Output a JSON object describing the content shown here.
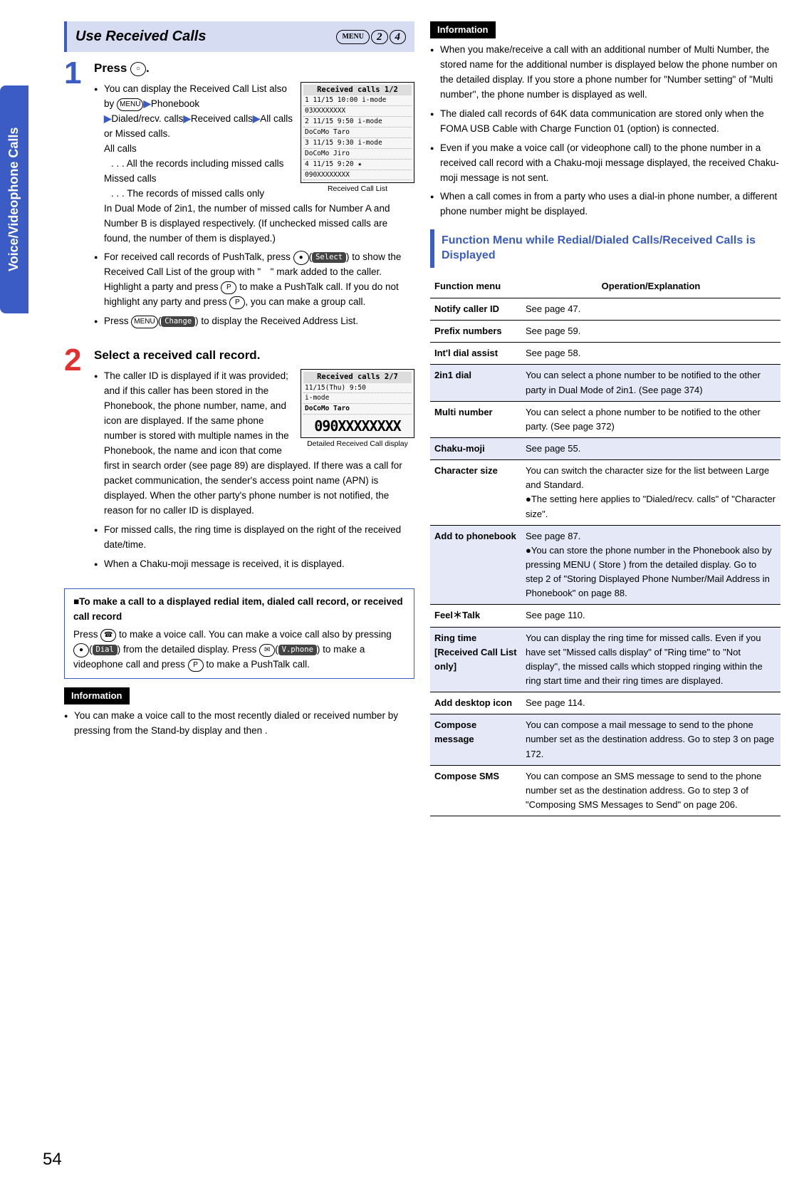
{
  "page_number": "54",
  "side_tab": "Voice/Videophone Calls",
  "title": "Use Received Calls",
  "menu_chips": [
    "MENU",
    "2",
    "4"
  ],
  "step1": {
    "title_prefix": "Press ",
    "title_key": "○",
    "title_suffix": ".",
    "screen_caption": "Received Call List",
    "screen_header": "Received calls  1/2",
    "screen_rows": [
      "1 11/15 10:00  i-mode",
      "  03XXXXXXXX",
      "2 11/15  9:50  i-mode",
      "  DoCoMo Taro",
      "3 11/15  9:30  i-mode",
      "  DoCoMo Jiro",
      "4 11/15  9:20  ★",
      "  090XXXXXXXX"
    ],
    "intro1_a": "You can display the Received Call List also by ",
    "intro1_b": "Phonebook",
    "intro1_c": "Dialed/recv. calls",
    "intro1_d": "Received calls",
    "intro1_e": "All calls or Missed calls.",
    "allcalls_label": "All calls",
    "allcalls_desc": ". . . All the records including missed calls",
    "missed_label": "Missed calls",
    "missed_desc": ". . . The records of missed calls only",
    "dual": "In Dual Mode of 2in1, the number of missed calls for Number A and Number B is displayed respectively. (If unchecked missed calls are found, the number of them is displayed.)",
    "b2_a": "For received call records of PushTalk, press ",
    "b2_b": " to show the Received Call List of the group with \"　\" mark added to the caller. Highlight a party and press ",
    "b2_c": " to make a PushTalk call. If you do not highlight any party and press ",
    "b2_d": ", you can make a group call.",
    "b3_a": "Press ",
    "b3_b": " to display the Received Address List."
  },
  "step2": {
    "title": "Select a received call record.",
    "screen_caption": "Detailed Received Call display",
    "screen_header": "Received calls  2/7",
    "screen_line1": "11/15(Thu) 9:50",
    "screen_line2": "i-mode",
    "screen_name": "DoCoMo Taro",
    "screen_big": "090XXXXXXXX",
    "b1": "The caller ID is displayed if it was provided; and if this caller has been stored in the Phonebook, the phone number, name, and icon are displayed. If the same phone number is stored with multiple names in the Phonebook, the name and icon that come first in search order (see page 89) are displayed. If there was a call for packet communication, the sender's access point name (APN) is displayed. When the other party's phone number is not notified, the reason for no caller ID is displayed.",
    "b2": "For missed calls, the ring time is displayed on the right of the received date/time.",
    "b3": "When a Chaku-moji message is received, it is displayed."
  },
  "callout": {
    "title": "■To make a call to a displayed redial item, dialed call record, or received call record",
    "l1a": "Press ",
    "l1b": " to make a voice call. You can make a voice call also by pressing ",
    "l1c": " from the detailed display. Press ",
    "l1d": " to make a videophone call and press ",
    "l1e": " to make a PushTalk call."
  },
  "info_left": {
    "head": "Information",
    "t": "You can make a voice call to the most recently dialed or received number by pressing           from the Stand-by display and then           ."
  },
  "info_right": {
    "head": "Information",
    "items": [
      "When you make/receive a call with an additional number of Multi Number, the stored name for the additional number is displayed below the phone number on the detailed display. If you store a phone number for \"Number setting\" of \"Multi number\", the phone number is displayed as well.",
      "The dialed call records of 64K data communication are stored only when the FOMA USB Cable with Charge Function 01 (option) is connected.",
      "Even if you make a voice call (or videophone call) to the phone number in a received call record with a Chaku-moji message displayed, the received Chaku-moji message is not sent.",
      "When a call comes in from a party who uses a dial-in phone number, a different phone number might be displayed."
    ]
  },
  "func_title": "Function Menu while Redial/Dialed Calls/Received Calls is Displayed",
  "func_cols": {
    "k": "Function menu",
    "v": "Operation/Explanation"
  },
  "func": [
    {
      "k": "Notify caller ID",
      "v": "See page 47.",
      "sh": false
    },
    {
      "k": "Prefix numbers",
      "v": "See page 59.",
      "sh": false
    },
    {
      "k": "Int'l dial assist",
      "v": "See page 58.",
      "sh": false
    },
    {
      "k": "2in1 dial",
      "v": "You can select a phone number to be notified to the other party in Dual Mode of 2in1. (See page 374)",
      "sh": true
    },
    {
      "k": "Multi number",
      "v": "You can select a phone number to be notified to the other party. (See page 372)",
      "sh": false
    },
    {
      "k": "Chaku-moji",
      "v": "See page 55.",
      "sh": true
    },
    {
      "k": "Character size",
      "v": "You can switch the character size for the list between Large and Standard.\n●The setting here applies to \"Dialed/recv. calls\" of \"Character size\".",
      "sh": false
    },
    {
      "k": "Add to phonebook",
      "v": "See page 87.\n●You can store the phone number in the Phonebook also by pressing MENU ( Store ) from the detailed display. Go to step 2 of \"Storing Displayed Phone Number/Mail Address in Phonebook\" on page 88.",
      "sh": true
    },
    {
      "k": "Feel＊Talk",
      "v": "See page 110.",
      "sh": false
    },
    {
      "k": "Ring time\n[Received Call List only]",
      "v": "You can display the ring time for missed calls. Even if you have set \"Missed calls display\" of \"Ring time\" to \"Not display\", the missed calls which stopped ringing within the ring start time and their ring times are displayed.",
      "sh": true
    },
    {
      "k": "Add desktop icon",
      "v": "See page 114.",
      "sh": false
    },
    {
      "k": "Compose message",
      "v": "You can compose a mail message to send to the phone number set as the destination address. Go to step 3 on page 172.",
      "sh": true
    },
    {
      "k": "Compose SMS",
      "v": "You can compose an SMS message to send to the phone number set as the destination address. Go to step 3 of \"Composing SMS Messages to Send\" on page 206.",
      "sh": false
    }
  ],
  "softlabels": {
    "select": "Select",
    "change": "Change",
    "dial": "Dial",
    "vphone": "V.phone",
    "store": "Store"
  }
}
